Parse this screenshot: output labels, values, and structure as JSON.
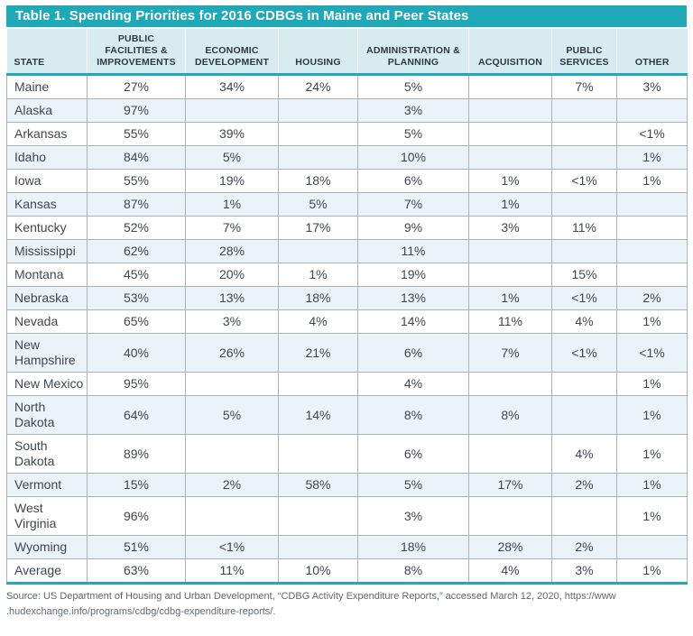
{
  "title": "Table 1. Spending Priorities for 2016 CDBGs in Maine and Peer States",
  "table": {
    "columns": [
      "STATE",
      "PUBLIC FACILITIES & IMPROVEMENTS",
      "ECONOMIC DEVELOPMENT",
      "HOUSING",
      "ADMINISTRATION & PLANNING",
      "ACQUISITION",
      "PUBLIC SERVICES",
      "OTHER"
    ],
    "rows": [
      {
        "state": "Maine",
        "values": [
          "27%",
          "34%",
          "24%",
          "5%",
          "",
          "7%",
          "3%"
        ]
      },
      {
        "state": "Alaska",
        "values": [
          "97%",
          "",
          "",
          "3%",
          "",
          "",
          ""
        ]
      },
      {
        "state": "Arkansas",
        "values": [
          "55%",
          "39%",
          "",
          "5%",
          "",
          "",
          "<1%"
        ]
      },
      {
        "state": "Idaho",
        "values": [
          "84%",
          "5%",
          "",
          "10%",
          "",
          "",
          "1%"
        ]
      },
      {
        "state": "Iowa",
        "values": [
          "55%",
          "19%",
          "18%",
          "6%",
          "1%",
          "<1%",
          "1%"
        ]
      },
      {
        "state": "Kansas",
        "values": [
          "87%",
          "1%",
          "5%",
          "7%",
          "1%",
          "",
          ""
        ]
      },
      {
        "state": "Kentucky",
        "values": [
          "52%",
          "7%",
          "17%",
          "9%",
          "3%",
          "11%",
          ""
        ]
      },
      {
        "state": "Mississippi",
        "values": [
          "62%",
          "28%",
          "",
          "11%",
          "",
          "",
          ""
        ]
      },
      {
        "state": "Montana",
        "values": [
          "45%",
          "20%",
          "1%",
          "19%",
          "",
          "15%",
          ""
        ]
      },
      {
        "state": "Nebraska",
        "values": [
          "53%",
          "13%",
          "18%",
          "13%",
          "1%",
          "<1%",
          "2%"
        ]
      },
      {
        "state": "Nevada",
        "values": [
          "65%",
          "3%",
          "4%",
          "14%",
          "11%",
          "4%",
          "1%"
        ]
      },
      {
        "state": "New Hampshire",
        "values": [
          "40%",
          "26%",
          "21%",
          "6%",
          "7%",
          "<1%",
          "<1%"
        ]
      },
      {
        "state": "New Mexico",
        "values": [
          "95%",
          "",
          "",
          "4%",
          "",
          "",
          "1%"
        ]
      },
      {
        "state": "North Dakota",
        "values": [
          "64%",
          "5%",
          "14%",
          "8%",
          "8%",
          "",
          "1%"
        ]
      },
      {
        "state": "South Dakota",
        "values": [
          "89%",
          "",
          "",
          "6%",
          "",
          "4%",
          "1%"
        ]
      },
      {
        "state": "Vermont",
        "values": [
          "15%",
          "2%",
          "58%",
          "5%",
          "17%",
          "2%",
          "1%"
        ]
      },
      {
        "state": "West Virginia",
        "values": [
          "96%",
          "",
          "",
          "3%",
          "",
          "",
          "1%"
        ]
      },
      {
        "state": "Wyoming",
        "values": [
          "51%",
          "<1%",
          "",
          "18%",
          "28%",
          "2%",
          ""
        ]
      },
      {
        "state": "Average",
        "values": [
          "63%",
          "11%",
          "10%",
          "8%",
          "4%",
          "3%",
          "1%"
        ]
      }
    ]
  },
  "source": {
    "line1": "Source: US Department of Housing and Urban Development, “CDBG Activity Expenditure Reports,” accessed March 12, 2020, https://www",
    "line2": ".hudexchange.info/programs/cdbg/cdbg-expenditure-reports/."
  },
  "colors": {
    "teal": "#1FA9B8",
    "header_bg": "#D7EBF0",
    "alt_row_bg": "#EAF3F7",
    "border": "#A9B4BA",
    "header_text": "#2E3944",
    "body_text": "#3F474E",
    "source_text": "#5D6A72"
  }
}
